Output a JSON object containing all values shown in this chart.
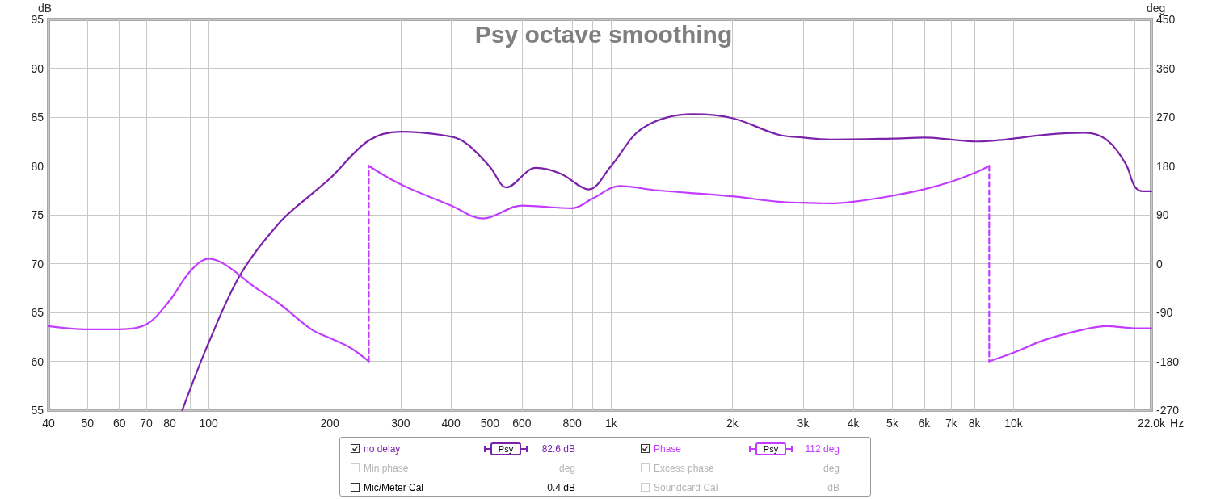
{
  "chart_data": {
    "type": "line",
    "title": "Psy octave smoothing",
    "xlabel": "Hz",
    "ylabel": "dB",
    "y2label": "deg",
    "log": "x",
    "grid": true,
    "legend": "bottom",
    "marker": "none",
    "xlim": [
      40,
      22000
    ],
    "xticks": [
      40,
      50,
      60,
      70,
      80,
      {
        "value": 90,
        "label": null
      },
      100,
      200,
      300,
      400,
      500,
      600,
      {
        "value": 700,
        "label": null
      },
      800,
      {
        "value": 900,
        "label": null
      },
      {
        "value": 1000,
        "label": "1k"
      },
      {
        "value": 2000,
        "label": "2k"
      },
      {
        "value": 3000,
        "label": "3k"
      },
      {
        "value": 4000,
        "label": "4k"
      },
      {
        "value": 5000,
        "label": "5k"
      },
      {
        "value": 6000,
        "label": "6k"
      },
      {
        "value": 7000,
        "label": "7k"
      },
      {
        "value": 8000,
        "label": "8k"
      },
      {
        "value": 9000,
        "label": null
      },
      {
        "value": 10000,
        "label": "10k"
      },
      {
        "value": 20000,
        "label": null
      },
      {
        "value": 22000,
        "label": "22.0k"
      }
    ],
    "ylim": [
      55,
      95
    ],
    "yticks": [
      55,
      60,
      65,
      70,
      75,
      80,
      85,
      90,
      95
    ],
    "y2lim": [
      -270,
      450
    ],
    "y2ticks": [
      -270,
      -180,
      -90,
      0,
      90,
      180,
      270,
      360,
      450
    ],
    "series": [
      {
        "name": "no delay",
        "color": "#7b22aa",
        "line_style": "solid",
        "x": [
          86,
          100,
          120,
          150,
          180,
          200,
          250,
          300,
          400,
          440,
          500,
          550,
          650,
          750,
          880,
          1000,
          1200,
          1600,
          2000,
          2600,
          3000,
          3500,
          5000,
          6000,
          7000,
          8000,
          9000,
          10000,
          12000,
          15000,
          17000,
          19000,
          20000,
          21000,
          22000
        ],
        "values": [
          55,
          61.9,
          68.9,
          74.2,
          77.1,
          78.7,
          82.6,
          83.5,
          83.0,
          82.2,
          79.9,
          77.8,
          79.8,
          79.2,
          77.6,
          80.0,
          83.9,
          85.3,
          84.9,
          83.2,
          82.9,
          82.7,
          82.8,
          82.9,
          82.7,
          82.5,
          82.6,
          82.8,
          83.2,
          83.4,
          82.7,
          80.2,
          77.9,
          77.4,
          77.4
        ]
      },
      {
        "name": "Phase",
        "color": "#c23cff",
        "axis": "y2",
        "line_style": "solid",
        "x": [
          40,
          50,
          60,
          70,
          80,
          90,
          100,
          110,
          130,
          150,
          180,
          200,
          225,
          250
        ],
        "values": [
          -115,
          -121,
          -121,
          -112,
          -68,
          -14,
          9,
          -2,
          -43,
          -74,
          -121,
          -137,
          -155,
          -180
        ]
      },
      {
        "color": "#c23cff",
        "axis": "y2",
        "line_style": "solid",
        "x": [
          250,
          300,
          400,
          480,
          600,
          800,
          900,
          1050,
          1300,
          2000,
          2600,
          3000,
          3500,
          4000,
          5000,
          6000,
          7000,
          8000,
          8700
        ],
        "values": [
          180,
          146,
          107,
          83,
          107,
          102,
          120,
          143,
          135,
          124,
          114,
          112,
          111,
          114,
          125,
          137,
          151,
          167,
          180
        ]
      },
      {
        "color": "#c23cff",
        "axis": "y2",
        "line_style": "solid",
        "x": [
          8700,
          10000,
          12000,
          15000,
          17000,
          20000,
          22000
        ],
        "values": [
          -180,
          -164,
          -140,
          -121,
          -115,
          -119,
          -119
        ]
      },
      {
        "color": "#c23cff",
        "axis": "y2",
        "line_style": "dashed",
        "x": [
          250,
          250
        ],
        "values": [
          -180,
          180
        ]
      },
      {
        "color": "#c23cff",
        "axis": "y2",
        "line_style": "dashed",
        "x": [
          8700,
          8700
        ],
        "values": [
          180,
          -180
        ]
      }
    ],
    "annotations": [
      "Psy",
      "82.6 dB",
      "Psy",
      "112 deg",
      "Min phase",
      "deg",
      "Excess phase",
      "deg",
      "Mic/Meter Cal",
      "0.4 dB",
      "Soundcard Cal",
      "dB"
    ]
  }
}
